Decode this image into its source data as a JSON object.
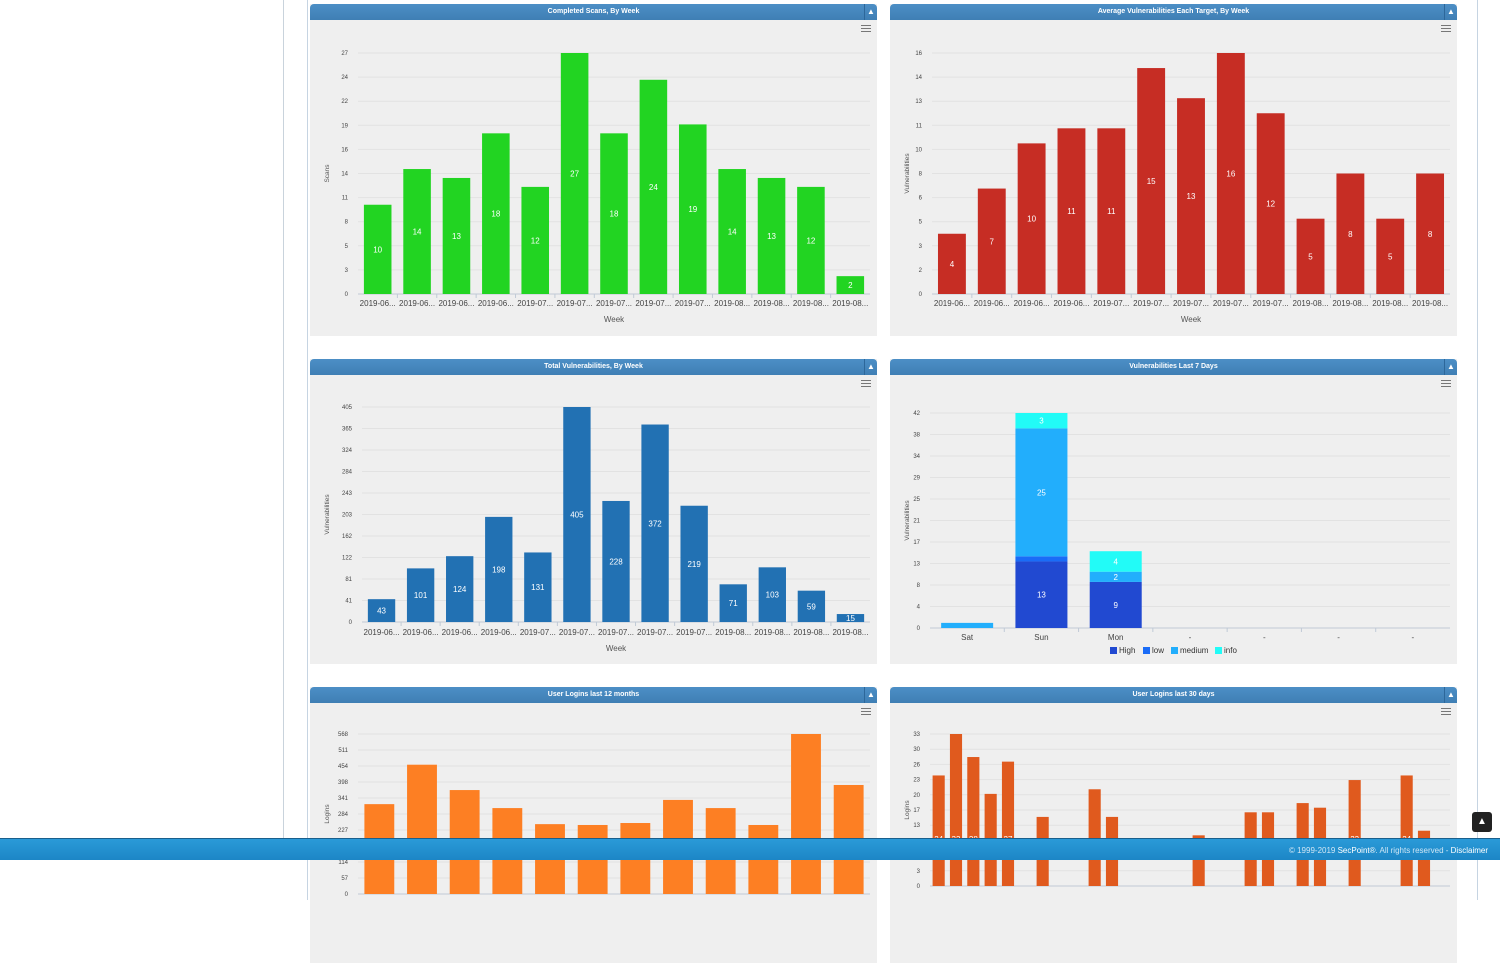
{
  "footer": {
    "copyright": "© 1999-2019 ",
    "brand": "SecPoint®",
    "rights": ". All rights reserved - ",
    "disclaimer": "Disclaimer"
  },
  "icons": {
    "collapse": "triangle-up-icon",
    "menu": "hamburger-menu-icon",
    "scroll_top": "arrow-up-icon"
  },
  "panels": [
    {
      "title": "Completed Scans, By Week"
    },
    {
      "title": "Average Vulnerabilities Each Target, By Week"
    },
    {
      "title": "Total Vulnerabilities, By Week"
    },
    {
      "title": "Vulnerabilities Last 7 Days"
    },
    {
      "title": "User Logins last 12 months"
    },
    {
      "title": "User Logins last 30 days"
    }
  ],
  "chart_data": [
    {
      "type": "bar",
      "title": "Completed Scans, By Week",
      "xlabel": "Week",
      "ylabel": "Scans",
      "color": "#22d422",
      "categories": [
        "2019-06...",
        "2019-06...",
        "2019-06...",
        "2019-06...",
        "2019-07...",
        "2019-07...",
        "2019-07...",
        "2019-07...",
        "2019-07...",
        "2019-08...",
        "2019-08...",
        "2019-08...",
        "2019-08..."
      ],
      "values": [
        10,
        14,
        13,
        18,
        12,
        27,
        18,
        24,
        19,
        14,
        13,
        12,
        2
      ],
      "yticks": [
        "0",
        "3",
        "5",
        "8",
        "11",
        "14",
        "16",
        "19",
        "22",
        "24",
        "27"
      ],
      "ylim": [
        0,
        27
      ],
      "data_labels": true,
      "grid": true
    },
    {
      "type": "bar",
      "title": "Average Vulnerabilities Each Target, By Week",
      "xlabel": "Week",
      "ylabel": "Vulnerabilities",
      "color": "#c62d24",
      "categories": [
        "2019-06...",
        "2019-06...",
        "2019-06...",
        "2019-06...",
        "2019-07...",
        "2019-07...",
        "2019-07...",
        "2019-07...",
        "2019-07...",
        "2019-08...",
        "2019-08...",
        "2019-08...",
        "2019-08..."
      ],
      "values": [
        4,
        7,
        10,
        11,
        11,
        15,
        13,
        16,
        12,
        5,
        8,
        5,
        8
      ],
      "yticks": [
        "0",
        "2",
        "3",
        "5",
        "6",
        "8",
        "10",
        "11",
        "13",
        "14",
        "16"
      ],
      "ylim": [
        0,
        16
      ],
      "data_labels": true,
      "grid": true
    },
    {
      "type": "bar",
      "title": "Total Vulnerabilities, By Week",
      "xlabel": "Week",
      "ylabel": "Vulnerabilities",
      "color": "#2271b3",
      "categories": [
        "2019-06...",
        "2019-06...",
        "2019-06...",
        "2019-06...",
        "2019-07...",
        "2019-07...",
        "2019-07...",
        "2019-07...",
        "2019-07...",
        "2019-08...",
        "2019-08...",
        "2019-08...",
        "2019-08..."
      ],
      "values": [
        43,
        101,
        124,
        198,
        131,
        405,
        228,
        372,
        219,
        71,
        103,
        59,
        15
      ],
      "yticks": [
        "0",
        "41",
        "81",
        "122",
        "162",
        "203",
        "243",
        "284",
        "324",
        "365",
        "405"
      ],
      "ylim": [
        0,
        405
      ],
      "data_labels": true,
      "grid": true
    },
    {
      "type": "bar",
      "stacked": true,
      "title": "Vulnerabilities Last 7 Days",
      "xlabel": "",
      "ylabel": "Vulnerabilities",
      "categories": [
        "Sat",
        "Sun",
        "Mon",
        "-",
        "-",
        "-",
        "-"
      ],
      "series": [
        {
          "name": "High",
          "color": "#2149d1",
          "values": [
            0,
            13,
            9,
            0,
            0,
            0,
            0
          ]
        },
        {
          "name": "low",
          "color": "#1a6cf7",
          "values": [
            0,
            1,
            0,
            0,
            0,
            0,
            0
          ]
        },
        {
          "name": "medium",
          "color": "#22aefc",
          "values": [
            1,
            25,
            2,
            0,
            0,
            0,
            0
          ]
        },
        {
          "name": "info",
          "color": "#22fbf7",
          "values": [
            0,
            3,
            4,
            0,
            0,
            0,
            0
          ]
        }
      ],
      "yticks": [
        "0",
        "4",
        "8",
        "13",
        "17",
        "21",
        "25",
        "29",
        "34",
        "38",
        "42"
      ],
      "ylim": [
        0,
        42
      ],
      "legend": "bottom",
      "data_labels": true,
      "grid": true
    },
    {
      "type": "bar",
      "title": "User Logins last 12 months",
      "ylabel": "Logins",
      "color": "#fd7f23",
      "values": [
        319,
        459,
        369,
        305,
        248,
        245,
        252,
        334,
        305,
        245,
        568,
        387
      ],
      "labeled": [
        false,
        true,
        false,
        false,
        false,
        false,
        false,
        false,
        false,
        false,
        true,
        false
      ],
      "yticks": [
        "0",
        "57",
        "114",
        "170",
        "227",
        "284",
        "341",
        "398",
        "454",
        "511",
        "568"
      ],
      "ylim": [
        0,
        568
      ],
      "grid": true
    },
    {
      "type": "bar",
      "title": "User Logins last 30 days",
      "ylabel": "Logins",
      "color": "#e05a1e",
      "values": [
        24,
        33,
        28,
        20,
        27,
        0,
        15,
        0,
        0,
        21,
        15,
        0,
        0,
        0,
        0,
        11,
        0,
        0,
        16,
        16,
        0,
        18,
        17,
        0,
        23,
        0,
        0,
        24,
        12,
        0
      ],
      "labeled": [
        true,
        true,
        true,
        false,
        true,
        false,
        false,
        false,
        false,
        false,
        false,
        false,
        false,
        false,
        false,
        false,
        false,
        false,
        false,
        false,
        false,
        false,
        false,
        false,
        true,
        false,
        false,
        true,
        false,
        false
      ],
      "yticks": [
        "0",
        "3",
        "7",
        "10",
        "13",
        "17",
        "20",
        "23",
        "26",
        "30",
        "33"
      ],
      "ylim": [
        0,
        33
      ],
      "grid": true
    }
  ]
}
